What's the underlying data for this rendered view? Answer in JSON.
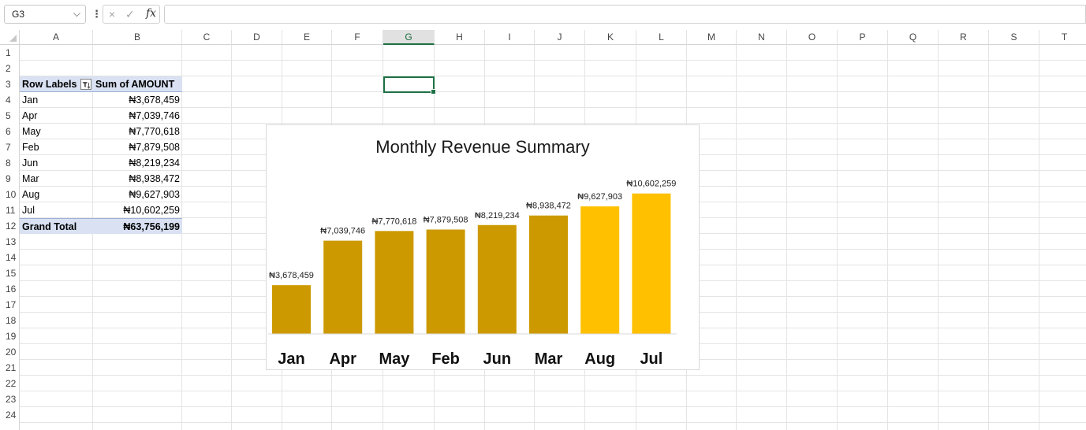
{
  "formula_bar": {
    "name_box": "G3",
    "cancel_icon": "×",
    "enter_icon": "✓",
    "fx_label": "fx",
    "formula_value": ""
  },
  "columns": [
    "A",
    "B",
    "C",
    "D",
    "E",
    "F",
    "G",
    "H",
    "I",
    "J",
    "K",
    "L",
    "M",
    "N",
    "O",
    "P",
    "Q",
    "R",
    "S",
    "T"
  ],
  "selected_column": "G",
  "rows": [
    "1",
    "2",
    "3",
    "4",
    "5",
    "6",
    "7",
    "8",
    "9",
    "10",
    "11",
    "12",
    "13",
    "14",
    "15",
    "16",
    "17",
    "18",
    "19",
    "20",
    "21",
    "22",
    "23",
    "24"
  ],
  "pivot": {
    "header_label": "Row Labels",
    "header_value": "Sum of AMOUNT",
    "rows": [
      {
        "label": "Jan",
        "value": "₦3,678,459"
      },
      {
        "label": "Apr",
        "value": "₦7,039,746"
      },
      {
        "label": "May",
        "value": "₦7,770,618"
      },
      {
        "label": "Feb",
        "value": "₦7,879,508"
      },
      {
        "label": "Jun",
        "value": "₦8,219,234"
      },
      {
        "label": "Mar",
        "value": "₦8,938,472"
      },
      {
        "label": "Aug",
        "value": "₦9,627,903"
      },
      {
        "label": "Jul",
        "value": "₦10,602,259"
      }
    ],
    "total_label": "Grand Total",
    "total_value": "₦63,756,199"
  },
  "chart_data": {
    "type": "bar",
    "title": "Monthly Revenue Summary",
    "categories": [
      "Jan",
      "Apr",
      "May",
      "Feb",
      "Jun",
      "Mar",
      "Aug",
      "Jul"
    ],
    "values": [
      3678459,
      7039746,
      7770618,
      7879508,
      8219234,
      8938472,
      9627903,
      10602259
    ],
    "data_labels": [
      "₦3,678,459",
      "₦7,039,746",
      "₦7,770,618",
      "₦7,879,508",
      "₦8,219,234",
      "₦8,938,472",
      "₦9,627,903",
      "₦10,602,259"
    ],
    "colors": [
      "#cc9a00",
      "#cc9a00",
      "#cc9a00",
      "#cc9a00",
      "#cc9a00",
      "#cc9a00",
      "#ffc000",
      "#ffc000"
    ],
    "ylim": [
      0,
      11000000
    ],
    "grid": false,
    "legend": "none"
  }
}
